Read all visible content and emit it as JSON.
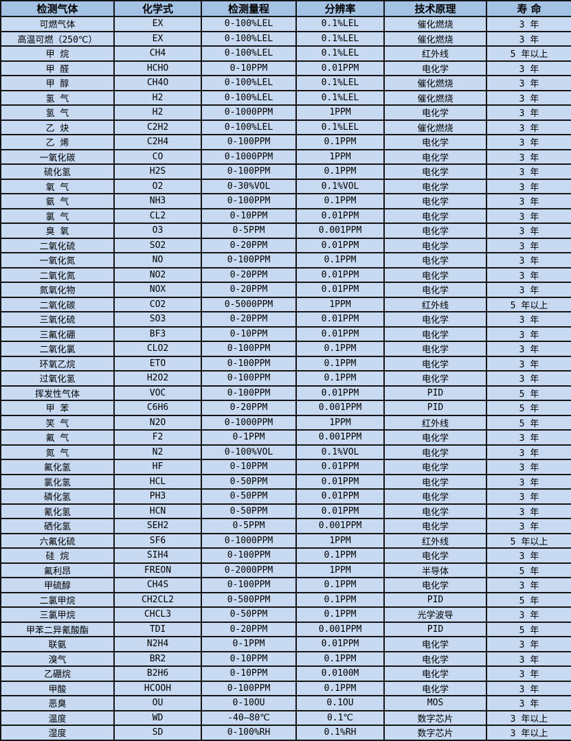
{
  "colors": {
    "header_bg": "#a4c2e4",
    "row_bg": "#c7daf2",
    "border": "#141414",
    "text": "#000000"
  },
  "table": {
    "columns": [
      "检测气体",
      "化学式",
      "检测量程",
      "分辨率",
      "技术原理",
      "寿 命"
    ],
    "rows": [
      [
        "可燃气体",
        "EX",
        "0-100%LEL",
        "0.1%LEL",
        "催化燃烧",
        "3 年"
      ],
      [
        "高温可燃（250℃）",
        "EX",
        "0-100%LEL",
        "0.1%LEL",
        "催化燃烧",
        "3 年"
      ],
      [
        "甲 烷",
        "CH4",
        "0-100%LEL",
        "0.1%LEL",
        "红外线",
        "5 年以上"
      ],
      [
        "甲 醛",
        "HCHO",
        "0-10PPM",
        "0.01PPM",
        "电化学",
        "3 年"
      ],
      [
        "甲 醇",
        "CH4O",
        "0-100%LEL",
        "0.1%LEL",
        "催化燃烧",
        "3 年"
      ],
      [
        "氢 气",
        "H2",
        "0-100%LEL",
        "0.1%LEL",
        "催化燃烧",
        "3 年"
      ],
      [
        "氢 气",
        "H2",
        "0-1000PPM",
        "1PPM",
        "电化学",
        "3 年"
      ],
      [
        "乙 炔",
        "C2H2",
        "0-100%LEL",
        "0.1%LEL",
        "催化燃烧",
        "3 年"
      ],
      [
        "乙 烯",
        "C2H4",
        "0-100PPM",
        "0.1PPM",
        "电化学",
        "3 年"
      ],
      [
        "一氧化碳",
        "CO",
        "0-1000PPM",
        "1PPM",
        "电化学",
        "3 年"
      ],
      [
        "硫化氢",
        "H2S",
        "0-100PPM",
        "0.1PPM",
        "电化学",
        "3 年"
      ],
      [
        "氧 气",
        "O2",
        "0-30%VOL",
        "0.1%VOL",
        "电化学",
        "3 年"
      ],
      [
        "氨 气",
        "NH3",
        "0-100PPM",
        "0.1PPM",
        "电化学",
        "3 年"
      ],
      [
        "氯 气",
        "CL2",
        "0-10PPM",
        "0.01PPM",
        "电化学",
        "3 年"
      ],
      [
        "臭 氧",
        "O3",
        "0-5PPM",
        "0.001PPM",
        "电化学",
        "3 年"
      ],
      [
        "二氧化硫",
        "SO2",
        "0-20PPM",
        "0.01PPM",
        "电化学",
        "3 年"
      ],
      [
        "一氧化氮",
        "NO",
        "0-100PPM",
        "0.1PPM",
        "电化学",
        "3 年"
      ],
      [
        "二氧化氮",
        "NO2",
        "0-20PPM",
        "0.01PPM",
        "电化学",
        "3 年"
      ],
      [
        "氮氧化物",
        "NOX",
        "0-20PPM",
        "0.01PPM",
        "电化学",
        "3 年"
      ],
      [
        "二氧化碳",
        "CO2",
        "0-5000PPM",
        "1PPM",
        "红外线",
        "5 年以上"
      ],
      [
        "三氧化硫",
        "SO3",
        "0-20PPM",
        "0.01PPM",
        "电化学",
        "3 年"
      ],
      [
        "三氟化硼",
        "BF3",
        "0-10PPM",
        "0.01PPM",
        "电化学",
        "3 年"
      ],
      [
        "二氧化氯",
        "CLO2",
        "0-100PPM",
        "0.1PPM",
        "电化学",
        "3 年"
      ],
      [
        "环氧乙烷",
        "ETO",
        "0-100PPM",
        "0.1PPM",
        "电化学",
        "3 年"
      ],
      [
        "过氧化氢",
        "H2O2",
        "0-100PPM",
        "0.1PPM",
        "电化学",
        "3 年"
      ],
      [
        "挥发性气体",
        "VOC",
        "0-100PPM",
        "0.01PPM",
        "PID",
        "5 年"
      ],
      [
        "甲 苯",
        "C6H6",
        "0-20PPM",
        "0.001PPM",
        "PID",
        "5 年"
      ],
      [
        "笑 气",
        "N2O",
        "0-1000PPM",
        "1PPM",
        "红外线",
        "5 年"
      ],
      [
        "氟 气",
        "F2",
        "0-1PPM",
        "0.001PPM",
        "电化学",
        "3 年"
      ],
      [
        "氮 气",
        "N2",
        "0-100%VOL",
        "0.1%VOL",
        "电化学",
        "3 年"
      ],
      [
        "氟化氢",
        "HF",
        "0-10PPM",
        "0.01PPM",
        "电化学",
        "3 年"
      ],
      [
        "氯化氢",
        "HCL",
        "0-50PPM",
        "0.01PPM",
        "电化学",
        "3 年"
      ],
      [
        "磷化氢",
        "PH3",
        "0-50PPM",
        "0.01PPM",
        "电化学",
        "3 年"
      ],
      [
        "氰化氢",
        "HCN",
        "0-50PPM",
        "0.01PPM",
        "电化学",
        "3 年"
      ],
      [
        "硒化氢",
        "SEH2",
        "0-5PPM",
        "0.001PPM",
        "电化学",
        "3 年"
      ],
      [
        "六氟化硫",
        "SF6",
        "0-1000PPM",
        "1PPM",
        "红外线",
        "5 年以上"
      ],
      [
        "硅 烷",
        "SIH4",
        "0-100PPM",
        "0.1PPM",
        "电化学",
        "3 年"
      ],
      [
        "氟利昂",
        "FREON",
        "0-2000PPM",
        "1PPM",
        "半导体",
        "5 年"
      ],
      [
        "甲硫醇",
        "CH4S",
        "0-100PPM",
        "0.1PPM",
        "电化学",
        "3 年"
      ],
      [
        "二氯甲烷",
        "CH2CL2",
        "0-500PPM",
        "0.1PPM",
        "PID",
        "5 年"
      ],
      [
        "三氯甲烷",
        "CHCL3",
        "0-50PPM",
        "0.1PPM",
        "光学波导",
        "3 年"
      ],
      [
        "甲苯二异氰酸酯",
        "TDI",
        "0-20PPM",
        "0.001PPM",
        "PID",
        "5 年"
      ],
      [
        "联氨",
        "N2H4",
        "0-1PPM",
        "0.01PPM",
        "电化学",
        "3 年"
      ],
      [
        "溴气",
        "BR2",
        "0-10PPM",
        "0.1PPM",
        "电化学",
        "3 年"
      ],
      [
        "乙硼烷",
        "B2H6",
        "0-10PPM",
        "0.0100M",
        "电化学",
        "3 年"
      ],
      [
        "甲酸",
        "HCOOH",
        "0-100PPM",
        "0.1PPM",
        "电化学",
        "3 年"
      ],
      [
        "恶臭",
        "OU",
        "0-10OU",
        "0.1OU",
        "MOS",
        "3 年"
      ],
      [
        "温度",
        "WD",
        "-40—80℃",
        "0.1℃",
        "数字芯片",
        "3 年以上"
      ],
      [
        "湿度",
        "SD",
        "0-100%RH",
        "0.1%RH",
        "数字芯片",
        "3 年以上"
      ]
    ]
  }
}
